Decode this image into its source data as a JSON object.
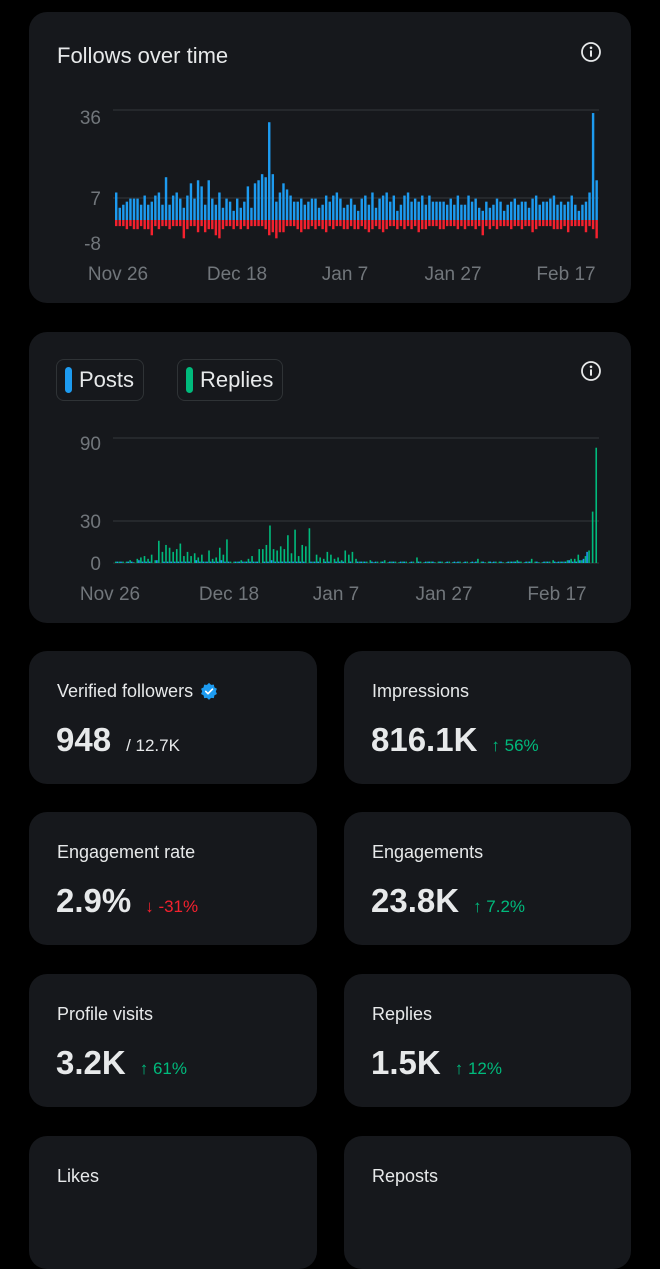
{
  "colors": {
    "background": "#000000",
    "card": "#16181c",
    "positive_bar": "#1d9bf0",
    "negative_bar": "#f4212e",
    "replies_bar": "#00ba7c",
    "up": "#00ba7c",
    "down": "#f4212e",
    "grid": "#2f3336",
    "axis_text": "#71767b"
  },
  "follows_card": {
    "title": "Follows over time",
    "info_icon": "info-circle-icon"
  },
  "posts_card": {
    "legend": [
      {
        "label": "Posts",
        "color": "#1d9bf0"
      },
      {
        "label": "Replies",
        "color": "#00ba7c"
      }
    ],
    "info_icon": "info-circle-icon"
  },
  "chart_data": [
    {
      "type": "bar",
      "x_tick_labels": [
        "Nov 26",
        "Dec 18",
        "Jan 7",
        "Jan 27",
        "Feb 17"
      ],
      "y_tick_labels": [
        "36",
        "7",
        "-8"
      ],
      "ylim": [
        -8,
        36
      ],
      "grid": true,
      "series": [
        {
          "name": "follows",
          "values": [
            9,
            4,
            5,
            6,
            7,
            7,
            7,
            5,
            8,
            5,
            6,
            8,
            9,
            5,
            14,
            5,
            8,
            9,
            7,
            4,
            8,
            12,
            7,
            13,
            11,
            5,
            13,
            7,
            5,
            9,
            4,
            7,
            6,
            3,
            7,
            4,
            6,
            11,
            4,
            12,
            13,
            15,
            14,
            32,
            15,
            6,
            9,
            12,
            10,
            8,
            6,
            6,
            7,
            5,
            6,
            7,
            7,
            4,
            5,
            8,
            6,
            8,
            9,
            7,
            4,
            5,
            7,
            5,
            3,
            7,
            8,
            5,
            9,
            4,
            7,
            8,
            9,
            6,
            8,
            3,
            5,
            8,
            9,
            6,
            7,
            6,
            8,
            5,
            8,
            6,
            6,
            6,
            6,
            5,
            7,
            5,
            8,
            5,
            5,
            8,
            6,
            7,
            4,
            3,
            6,
            4,
            5,
            7,
            6,
            3,
            5,
            6,
            7,
            5,
            6,
            6,
            4,
            7,
            8,
            5,
            6,
            6,
            7,
            8,
            5,
            6,
            5,
            6,
            8,
            5,
            3,
            5,
            6,
            9,
            35,
            13
          ]
        },
        {
          "name": "unfollows",
          "values": [
            2,
            2,
            2,
            3,
            2,
            3,
            3,
            2,
            3,
            3,
            5,
            2,
            3,
            2,
            2,
            3,
            2,
            2,
            2,
            6,
            3,
            2,
            2,
            4,
            2,
            4,
            3,
            3,
            5,
            6,
            3,
            2,
            2,
            3,
            2,
            3,
            2,
            3,
            2,
            2,
            2,
            2,
            3,
            5,
            4,
            6,
            4,
            4,
            2,
            2,
            2,
            3,
            4,
            3,
            3,
            2,
            3,
            2,
            3,
            4,
            2,
            3,
            2,
            2,
            3,
            3,
            2,
            3,
            3,
            2,
            3,
            4,
            3,
            2,
            3,
            4,
            3,
            2,
            2,
            3,
            2,
            3,
            2,
            3,
            2,
            4,
            3,
            3,
            2,
            2,
            2,
            3,
            3,
            2,
            2,
            2,
            3,
            2,
            3,
            2,
            2,
            3,
            2,
            5,
            2,
            3,
            2,
            3,
            2,
            2,
            2,
            3,
            2,
            2,
            3,
            2,
            2,
            4,
            3,
            2,
            2,
            2,
            2,
            3,
            3,
            3,
            2,
            4,
            2,
            2,
            2,
            2,
            4,
            2,
            3,
            6
          ]
        }
      ]
    },
    {
      "type": "bar",
      "x_tick_labels": [
        "Nov 26",
        "Dec 18",
        "Jan 7",
        "Jan 27",
        "Feb 17"
      ],
      "y_tick_labels": [
        "90",
        "30",
        "0"
      ],
      "ylim": [
        0,
        90
      ],
      "grid": true,
      "series": [
        {
          "name": "Posts",
          "values": [
            1,
            1,
            0,
            1,
            1,
            0,
            2,
            1,
            1,
            1,
            0,
            2,
            0,
            1,
            1,
            1,
            1,
            1,
            1,
            1,
            1,
            0,
            2,
            1,
            1,
            1,
            1,
            1,
            1,
            2,
            1,
            1,
            0,
            1,
            1,
            1,
            1,
            1,
            1,
            1,
            0,
            1,
            1,
            2,
            1,
            1,
            1,
            1,
            1,
            1,
            1,
            1,
            1,
            0,
            1,
            1,
            1,
            0,
            1,
            1,
            0,
            1,
            1,
            1,
            0,
            1,
            0,
            1,
            1,
            1,
            0,
            1,
            1,
            0,
            1,
            0,
            1,
            1,
            0,
            1,
            1,
            0,
            1,
            0,
            1,
            0,
            1,
            1,
            1,
            0,
            1,
            0,
            1,
            0,
            1,
            1,
            0,
            1,
            0,
            1,
            1,
            0,
            1,
            0,
            1,
            1,
            0,
            1,
            0,
            1,
            1,
            1,
            1,
            0,
            1,
            1,
            0,
            1,
            0,
            1,
            1,
            0,
            1,
            1,
            1,
            1,
            2,
            1,
            1,
            2,
            3,
            8
          ]
        },
        {
          "name": "Replies",
          "values": [
            1,
            1,
            1,
            1,
            2,
            0,
            3,
            4,
            5,
            3,
            6,
            2,
            16,
            8,
            13,
            11,
            8,
            10,
            14,
            5,
            8,
            5,
            7,
            4,
            6,
            1,
            9,
            3,
            4,
            11,
            6,
            17,
            1,
            1,
            1,
            2,
            1,
            3,
            5,
            1,
            10,
            10,
            13,
            27,
            10,
            9,
            12,
            10,
            20,
            7,
            24,
            5,
            13,
            12,
            25,
            1,
            6,
            4,
            3,
            8,
            6,
            3,
            4,
            2,
            9,
            6,
            8,
            3,
            1,
            1,
            1,
            2,
            0,
            1,
            1,
            2,
            0,
            1,
            1,
            0,
            1,
            1,
            0,
            1,
            4,
            1,
            0,
            1,
            1,
            0,
            1,
            1,
            0,
            1,
            0,
            0,
            1,
            0,
            1,
            0,
            0,
            3,
            1,
            0,
            1,
            0,
            1,
            1,
            0,
            0,
            1,
            1,
            2,
            1,
            0,
            1,
            3,
            1,
            0,
            0,
            1,
            1,
            2,
            0,
            1,
            1,
            2,
            3,
            3,
            6,
            2,
            5,
            9,
            37,
            83
          ]
        }
      ]
    }
  ],
  "stats": [
    {
      "label": "Verified followers",
      "value": "948",
      "sub": "/ 12.7K",
      "verified_icon": "verified-badge-icon"
    },
    {
      "label": "Impressions",
      "value": "816.1K",
      "change": "↑ 56%",
      "direction": "up"
    },
    {
      "label": "Engagement rate",
      "value": "2.9%",
      "change": "↓ -31%",
      "direction": "down"
    },
    {
      "label": "Engagements",
      "value": "23.8K",
      "change": "↑ 7.2%",
      "direction": "up"
    },
    {
      "label": "Profile visits",
      "value": "3.2K",
      "change": "↑ 61%",
      "direction": "up"
    },
    {
      "label": "Replies",
      "value": "1.5K",
      "change": "↑ 12%",
      "direction": "up"
    },
    {
      "label": "Likes"
    },
    {
      "label": "Reposts"
    }
  ]
}
